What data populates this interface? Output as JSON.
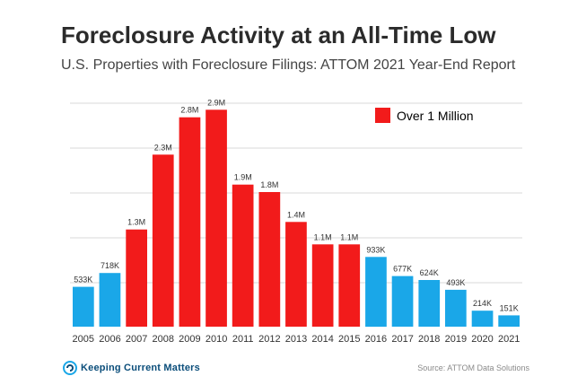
{
  "title": "Foreclosure Activity at an All-Time Low",
  "subtitle": "U.S. Properties with Foreclosure Filings:  ATTOM 2021 Year-End Report",
  "legend_label": "Over 1 Million",
  "logo_text": "Keeping Current Matters",
  "source": "Source: ATTOM Data Solutions",
  "colors": {
    "over_million": "#f21b1b",
    "under_million": "#1aa7e8",
    "grid": "#d9d9d9"
  },
  "chart_data": {
    "type": "bar",
    "title": "Foreclosure Activity at an All-Time Low",
    "subtitle": "U.S. Properties with Foreclosure Filings:  ATTOM 2021 Year-End Report",
    "categories": [
      "2005",
      "2006",
      "2007",
      "2008",
      "2009",
      "2010",
      "2011",
      "2012",
      "2013",
      "2014",
      "2015",
      "2016",
      "2017",
      "2018",
      "2019",
      "2020",
      "2021"
    ],
    "values": [
      533000,
      718000,
      1300000,
      2300000,
      2800000,
      2900000,
      1900000,
      1800000,
      1400000,
      1100000,
      1100000,
      933000,
      677000,
      624000,
      493000,
      214000,
      151000
    ],
    "data_labels": [
      "533K",
      "718K",
      "1.3M",
      "2.3M",
      "2.8M",
      "2.9M",
      "1.9M",
      "1.8M",
      "1.4M",
      "1.1M",
      "1.1M",
      "933K",
      "677K",
      "624K",
      "493K",
      "214K",
      "151K"
    ],
    "highlight": [
      false,
      false,
      true,
      true,
      true,
      true,
      true,
      true,
      true,
      true,
      true,
      false,
      false,
      false,
      false,
      false,
      false
    ],
    "ylim": [
      0,
      3000000
    ],
    "grid": true,
    "legend": [
      {
        "name": "Over 1 Million",
        "color": "#f21b1b"
      }
    ]
  }
}
